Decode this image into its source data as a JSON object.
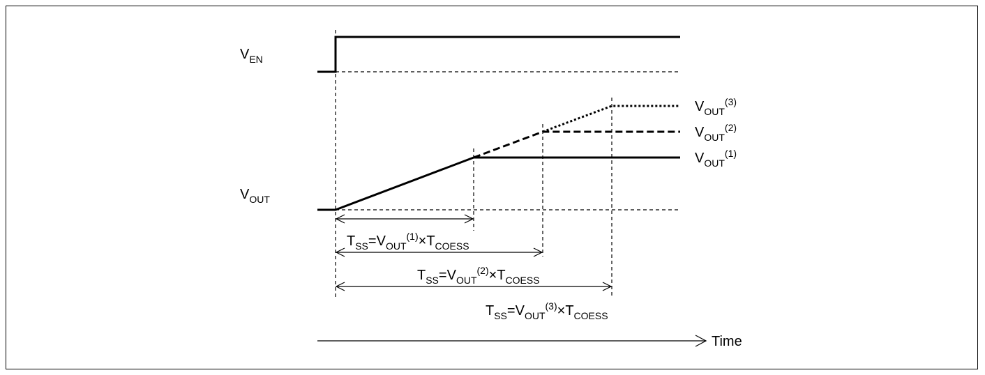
{
  "signals": {
    "enable": {
      "main": "V",
      "sub": "EN"
    },
    "output": {
      "main": "V",
      "sub": "OUT"
    }
  },
  "levels": [
    {
      "main": "V",
      "sub": "OUT",
      "sup": "(1)",
      "style": "solid"
    },
    {
      "main": "V",
      "sub": "OUT",
      "sup": "(2)",
      "style": "dashed"
    },
    {
      "main": "V",
      "sub": "OUT",
      "sup": "(3)",
      "style": "dotted"
    }
  ],
  "formulas": [
    {
      "t": "T",
      "t_sub": "SS",
      "eq": "=",
      "v": "V",
      "v_sub": "OUT",
      "v_sup": "(1)",
      "times": "×",
      "c": "T",
      "c_sub": "COESS"
    },
    {
      "t": "T",
      "t_sub": "SS",
      "eq": "=",
      "v": "V",
      "v_sub": "OUT",
      "v_sup": "(2)",
      "times": "×",
      "c": "T",
      "c_sub": "COESS"
    },
    {
      "t": "T",
      "t_sub": "SS",
      "eq": "=",
      "v": "V",
      "v_sub": "OUT",
      "v_sup": "(3)",
      "times": "×",
      "c": "T",
      "c_sub": "COESS"
    }
  ],
  "time_axis": {
    "label": "Time"
  }
}
